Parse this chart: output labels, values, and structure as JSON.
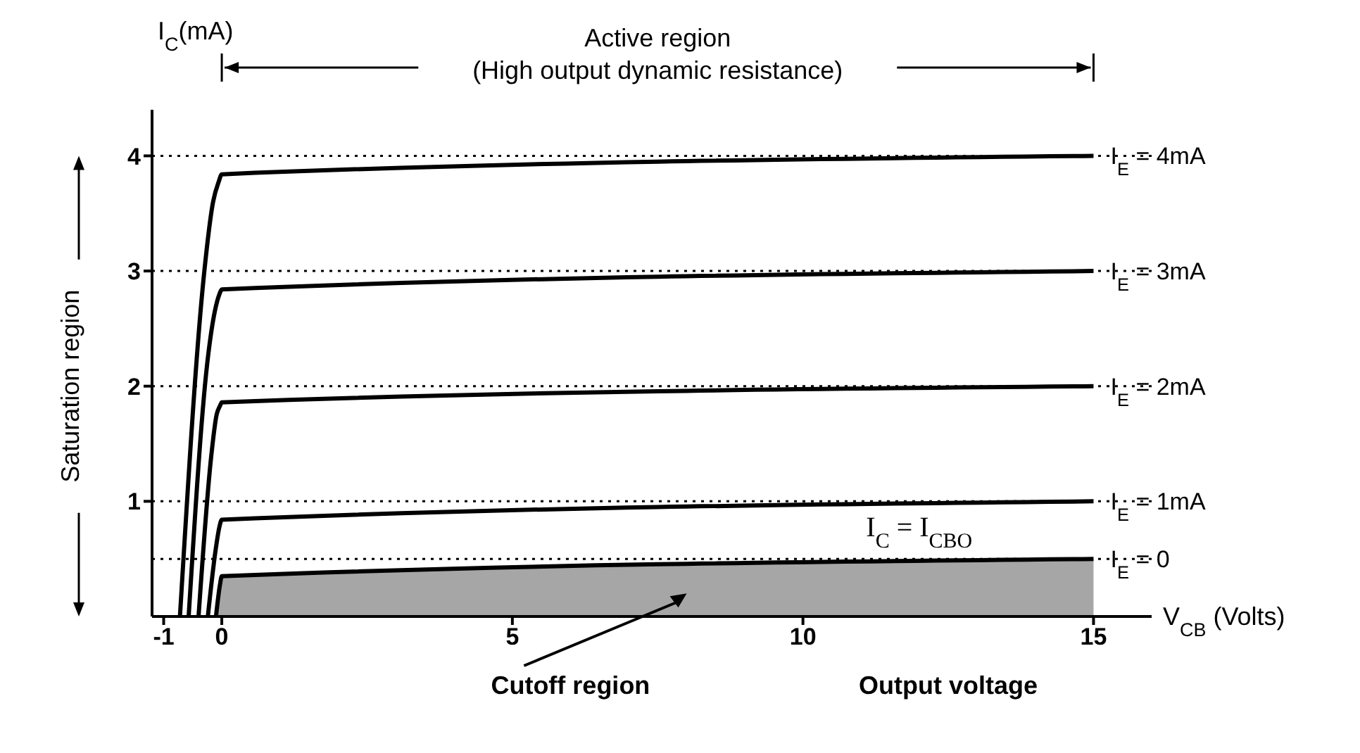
{
  "chart_data": {
    "type": "line",
    "xlabel": "V$_{CB}$ (Volts)",
    "ylabel": "I$_{C}$(mA)",
    "xlim": [
      -1.2,
      16
    ],
    "xticks": [
      -1,
      0,
      5,
      10,
      15
    ],
    "ylim": [
      0,
      4.4
    ],
    "yticks": [
      1,
      2,
      3,
      4
    ],
    "marker": "none",
    "line_style": "solid",
    "series": [
      {
        "name": "I$_{E}$ = 4mA",
        "color": "#000000",
        "x": [
          -0.72,
          -0.3,
          -0.15,
          -0.05,
          0,
          15
        ],
        "values": [
          0,
          3.0,
          3.6,
          3.78,
          3.84,
          4.0
        ]
      },
      {
        "name": "I$_{E}$ = 3mA",
        "color": "#000000",
        "x": [
          -0.57,
          -0.25,
          -0.12,
          -0.04,
          0,
          15
        ],
        "values": [
          0,
          2.2,
          2.65,
          2.8,
          2.84,
          3.0
        ]
      },
      {
        "name": "I$_{E}$ = 2mA",
        "color": "#000000",
        "x": [
          -0.4,
          -0.18,
          -0.09,
          -0.03,
          0,
          15
        ],
        "values": [
          0,
          1.4,
          1.75,
          1.83,
          1.86,
          2.0
        ]
      },
      {
        "name": "I$_{E}$ = 1mA",
        "color": "#000000",
        "x": [
          -0.24,
          -0.1,
          -0.04,
          0,
          15
        ],
        "values": [
          0,
          0.6,
          0.78,
          0.84,
          1.0
        ]
      },
      {
        "name": "I$_{E}$ = 0",
        "type": "area",
        "color": "#000000",
        "x": [
          -0.1,
          -0.03,
          0,
          15
        ],
        "values": [
          0,
          0.28,
          0.35,
          0.5
        ]
      }
    ],
    "ref_lines": [
      {
        "axis": "y",
        "value": 4,
        "color": "#000000",
        "line_style": "dotted"
      },
      {
        "axis": "y",
        "value": 3,
        "color": "#000000",
        "line_style": "dotted"
      },
      {
        "axis": "y",
        "value": 2,
        "color": "#000000",
        "line_style": "dotted"
      },
      {
        "axis": "y",
        "value": 1,
        "color": "#000000",
        "line_style": "dotted"
      },
      {
        "axis": "y",
        "value": 0.5,
        "color": "#000000",
        "line_style": "dotted"
      }
    ],
    "annotations": [
      "Active region",
      "(High output dynamic resistance)",
      "Saturation region",
      "Cutoff region",
      "Output voltage",
      {
        "text": "I$_{C}$ = I$_{CBO}$",
        "x": 12,
        "y": 0.5
      }
    ]
  }
}
